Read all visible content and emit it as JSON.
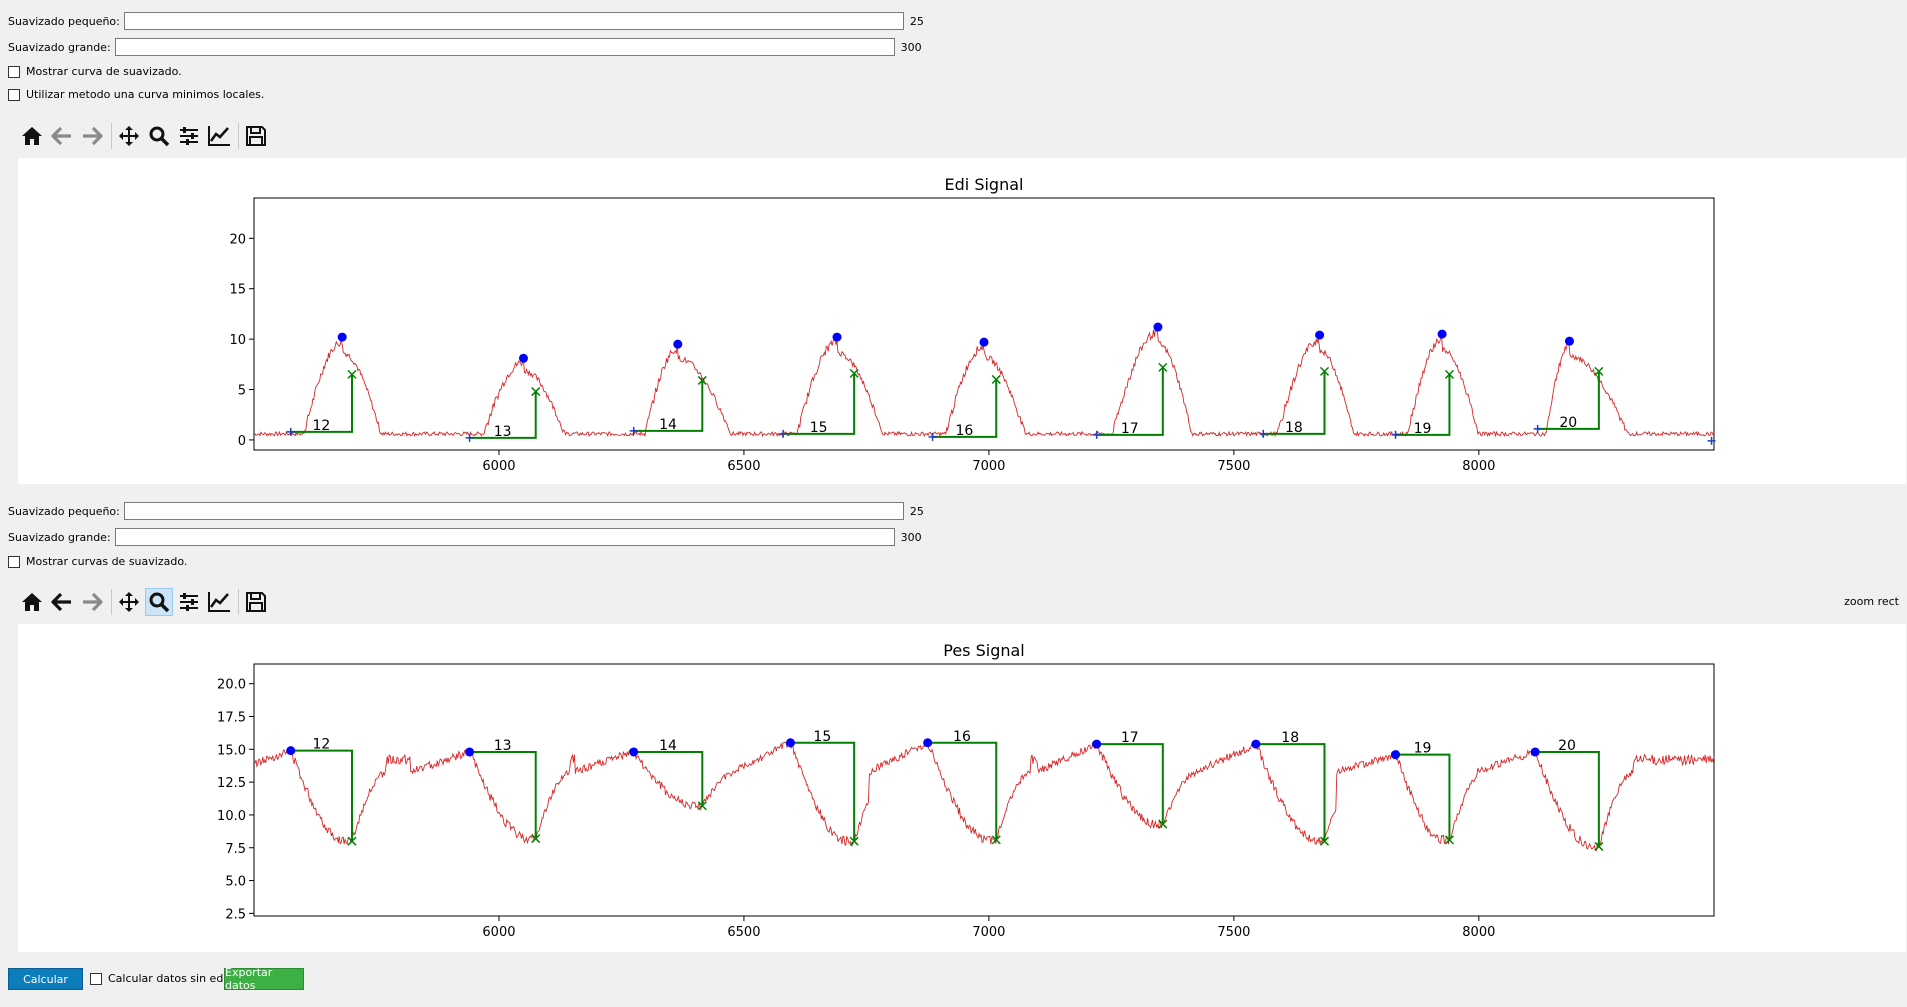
{
  "edi_controls": {
    "small_smooth_label": "Suavizado pequeño:",
    "small_smooth_value": "25",
    "large_smooth_label": "Suavizado grande:",
    "large_smooth_value": "300",
    "show_curve_label": "Mostrar curva de suavizado.",
    "local_min_label": "Utilizar metodo una curva minimos locales."
  },
  "pes_controls": {
    "small_smooth_label": "Suavizado pequeño:",
    "small_smooth_value": "25",
    "large_smooth_label": "Suavizado grande:",
    "large_smooth_value": "300",
    "show_curves_label": "Mostrar curvas de suavizado."
  },
  "toolbar_icons": [
    "home-icon",
    "back-icon",
    "forward-icon",
    "pan-icon",
    "zoom-icon",
    "configure-subplots-icon",
    "edit-axis-icon",
    "save-icon"
  ],
  "zoom_status": "zoom rect",
  "bottom": {
    "calc_button": "Calcular",
    "no_edi_label": "Calcular datos sin edi.",
    "export_button": "Exportar datos"
  },
  "colors": {
    "signal": "#d62728",
    "marker_peak": "#0000ff",
    "marker_cross": "#007f00",
    "bracket": "#007f00",
    "calc_btn": "#0c7cba",
    "export_btn": "#3cb043"
  },
  "chart_data": [
    {
      "type": "line",
      "title": "Edi Signal",
      "xlim": [
        5500,
        8480
      ],
      "ylim": [
        -1,
        24
      ],
      "xticks": [
        6000,
        6500,
        7000,
        7500,
        8000
      ],
      "yticks": [
        0,
        5,
        10,
        15,
        20
      ],
      "cycles": [
        {
          "label": "12",
          "start": 5575,
          "peak": 5680,
          "end": 5700,
          "base": 0.8,
          "peak_val": 10.2,
          "end_val": 6.5
        },
        {
          "label": "13",
          "start": 5940,
          "peak": 6050,
          "end": 6075,
          "base": 0.2,
          "peak_val": 8.1,
          "end_val": 4.8
        },
        {
          "label": "14",
          "start": 6275,
          "peak": 6365,
          "end": 6415,
          "base": 0.9,
          "peak_val": 9.5,
          "end_val": 5.9
        },
        {
          "label": "15",
          "start": 6580,
          "peak": 6690,
          "end": 6725,
          "base": 0.6,
          "peak_val": 10.2,
          "end_val": 6.6
        },
        {
          "label": "16",
          "start": 6885,
          "peak": 6990,
          "end": 7015,
          "base": 0.3,
          "peak_val": 9.7,
          "end_val": 6.0
        },
        {
          "label": "17",
          "start": 7220,
          "peak": 7345,
          "end": 7355,
          "base": 0.5,
          "peak_val": 11.2,
          "end_val": 7.2
        },
        {
          "label": "18",
          "start": 7560,
          "peak": 7675,
          "end": 7685,
          "base": 0.6,
          "peak_val": 10.4,
          "end_val": 6.8
        },
        {
          "label": "19",
          "start": 7830,
          "peak": 7925,
          "end": 7940,
          "base": 0.5,
          "peak_val": 10.5,
          "end_val": 6.5
        },
        {
          "label": "20",
          "start": 8120,
          "peak": 8185,
          "end": 8245,
          "base": 1.1,
          "peak_val": 9.8,
          "end_val": 6.8
        }
      ],
      "extra_plus": {
        "x": 8475,
        "y": -0.1
      }
    },
    {
      "type": "line",
      "title": "Pes Signal",
      "xlim": [
        5500,
        8480
      ],
      "ylim": [
        2.3,
        21.5
      ],
      "xticks": [
        6000,
        6500,
        7000,
        7500,
        8000
      ],
      "yticks": [
        2.5,
        5.0,
        7.5,
        10.0,
        12.5,
        15.0,
        17.5,
        20.0
      ],
      "cycles": [
        {
          "label": "12",
          "start": 5575,
          "end": 5700,
          "top": 14.9,
          "min_val": 8.0
        },
        {
          "label": "13",
          "start": 5940,
          "end": 6075,
          "top": 14.8,
          "min_val": 8.2
        },
        {
          "label": "14",
          "start": 6275,
          "end": 6415,
          "top": 14.8,
          "min_val": 10.7
        },
        {
          "label": "15",
          "start": 6595,
          "end": 6725,
          "top": 15.5,
          "min_val": 8.0
        },
        {
          "label": "16",
          "start": 6875,
          "end": 7015,
          "top": 15.5,
          "min_val": 8.1
        },
        {
          "label": "17",
          "start": 7220,
          "end": 7355,
          "top": 15.4,
          "min_val": 9.3
        },
        {
          "label": "18",
          "start": 7545,
          "end": 7685,
          "top": 15.4,
          "min_val": 8.0
        },
        {
          "label": "19",
          "start": 7830,
          "end": 7940,
          "top": 14.6,
          "min_val": 8.1
        },
        {
          "label": "20",
          "start": 8115,
          "end": 8245,
          "top": 14.8,
          "min_val": 7.6
        }
      ]
    }
  ]
}
